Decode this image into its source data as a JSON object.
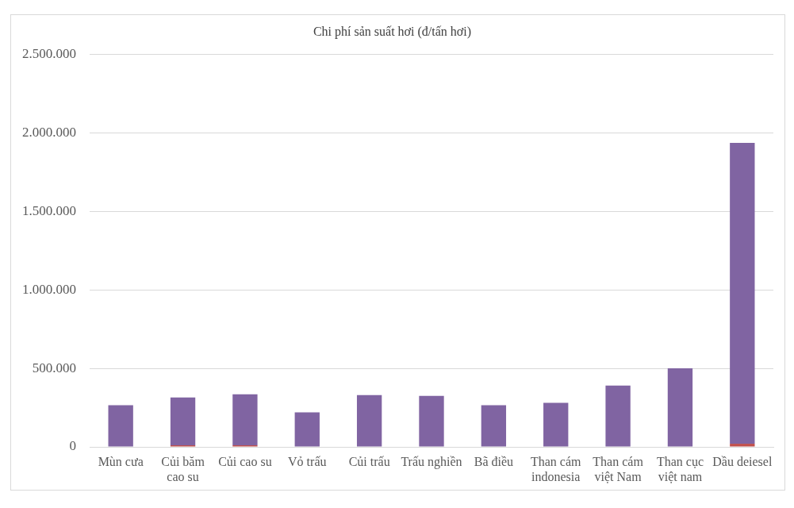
{
  "chart_data": {
    "type": "bar",
    "title": "Chi phí sản suất hơi (đ/tấn hơi)",
    "categories": [
      "Mùn cưa",
      "Củi băm cao su",
      "Củi cao su",
      "Vỏ trấu",
      "Củi trấu",
      "Trấu nghiền",
      "Bã điều",
      "Than cám indonesia",
      "Than cám việt Nam",
      "Than cục việt nam",
      "Dầu deiesel"
    ],
    "stacked": true,
    "series": [
      {
        "color": "#c0504d",
        "values": [
          null,
          10000,
          10000,
          null,
          null,
          null,
          null,
          null,
          null,
          null,
          20000
        ]
      },
      {
        "color": "#8064a2",
        "values": [
          265000,
          305000,
          325000,
          220000,
          330000,
          325000,
          265000,
          280000,
          390000,
          500000,
          1915000
        ]
      }
    ],
    "ylim": [
      0,
      2500000
    ],
    "yticks": [
      0,
      {
        "value": 500000,
        "label": "500.000"
      },
      {
        "value": 1000000,
        "label": "1.000.000"
      },
      {
        "value": 1500000,
        "label": "1.500.000"
      },
      {
        "value": 2000000,
        "label": "2.000.000"
      },
      {
        "value": 2500000,
        "label": "2.500.000"
      }
    ],
    "grid": "y"
  }
}
